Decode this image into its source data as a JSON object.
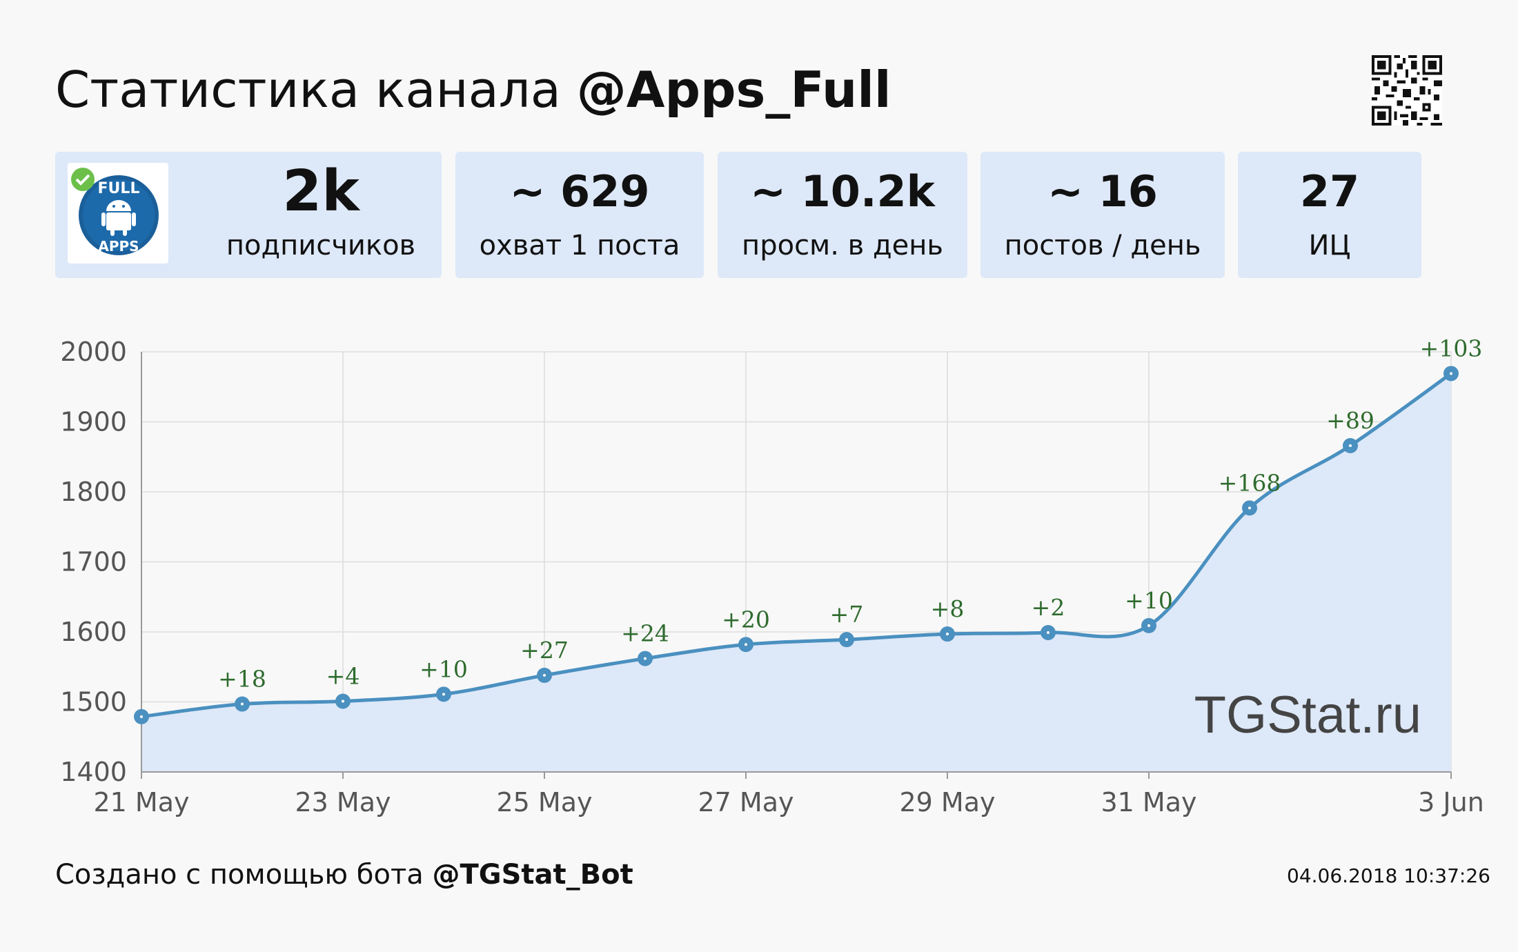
{
  "header": {
    "title_prefix": "Статистика канала",
    "channel": "@Apps_Full"
  },
  "stats": [
    {
      "value": "2k",
      "label": "подписчиков"
    },
    {
      "value": "~ 629",
      "label": "охват 1 поста"
    },
    {
      "value": "~ 10.2k",
      "label": "просм. в день"
    },
    {
      "value": "~ 16",
      "label": "постов / день"
    },
    {
      "value": "27",
      "label": "ИЦ"
    }
  ],
  "avatar": {
    "top_text": "FULL",
    "bottom_text": "APPS",
    "icon": "android-icon"
  },
  "watermark": "TGStat.ru",
  "footer": {
    "created_with": "Создано с помощью бота",
    "bot": "@TGStat_Bot",
    "timestamp": "04.06.2018 10:37:26"
  },
  "colors": {
    "line": "#4a90c0",
    "area": "#dde8f8",
    "delta_label": "#2e6b2e",
    "card": "#dde8f8"
  },
  "chart_data": {
    "type": "area",
    "x": [
      "21 May",
      "22 May",
      "23 May",
      "24 May",
      "25 May",
      "26 May",
      "27 May",
      "28 May",
      "29 May",
      "30 May",
      "31 May",
      "1 Jun",
      "2 Jun",
      "3 Jun"
    ],
    "values": [
      1479,
      1497,
      1501,
      1511,
      1538,
      1562,
      1582,
      1589,
      1597,
      1599,
      1609,
      1777,
      1866,
      1969
    ],
    "deltas": [
      "",
      "+18",
      "+4",
      "+10",
      "+27",
      "+24",
      "+20",
      "+7",
      "+8",
      "+2",
      "+10",
      "+168",
      "+89",
      "+103"
    ],
    "x_tick_labels": [
      "21 May",
      "23 May",
      "25 May",
      "27 May",
      "29 May",
      "31 May",
      "3 Jun"
    ],
    "x_tick_index": [
      0,
      2,
      4,
      6,
      8,
      10,
      13
    ],
    "y_ticks": [
      1400,
      1500,
      1600,
      1700,
      1800,
      1900,
      2000
    ],
    "ylim": [
      1400,
      2000
    ],
    "grid": true,
    "legend": "none"
  }
}
